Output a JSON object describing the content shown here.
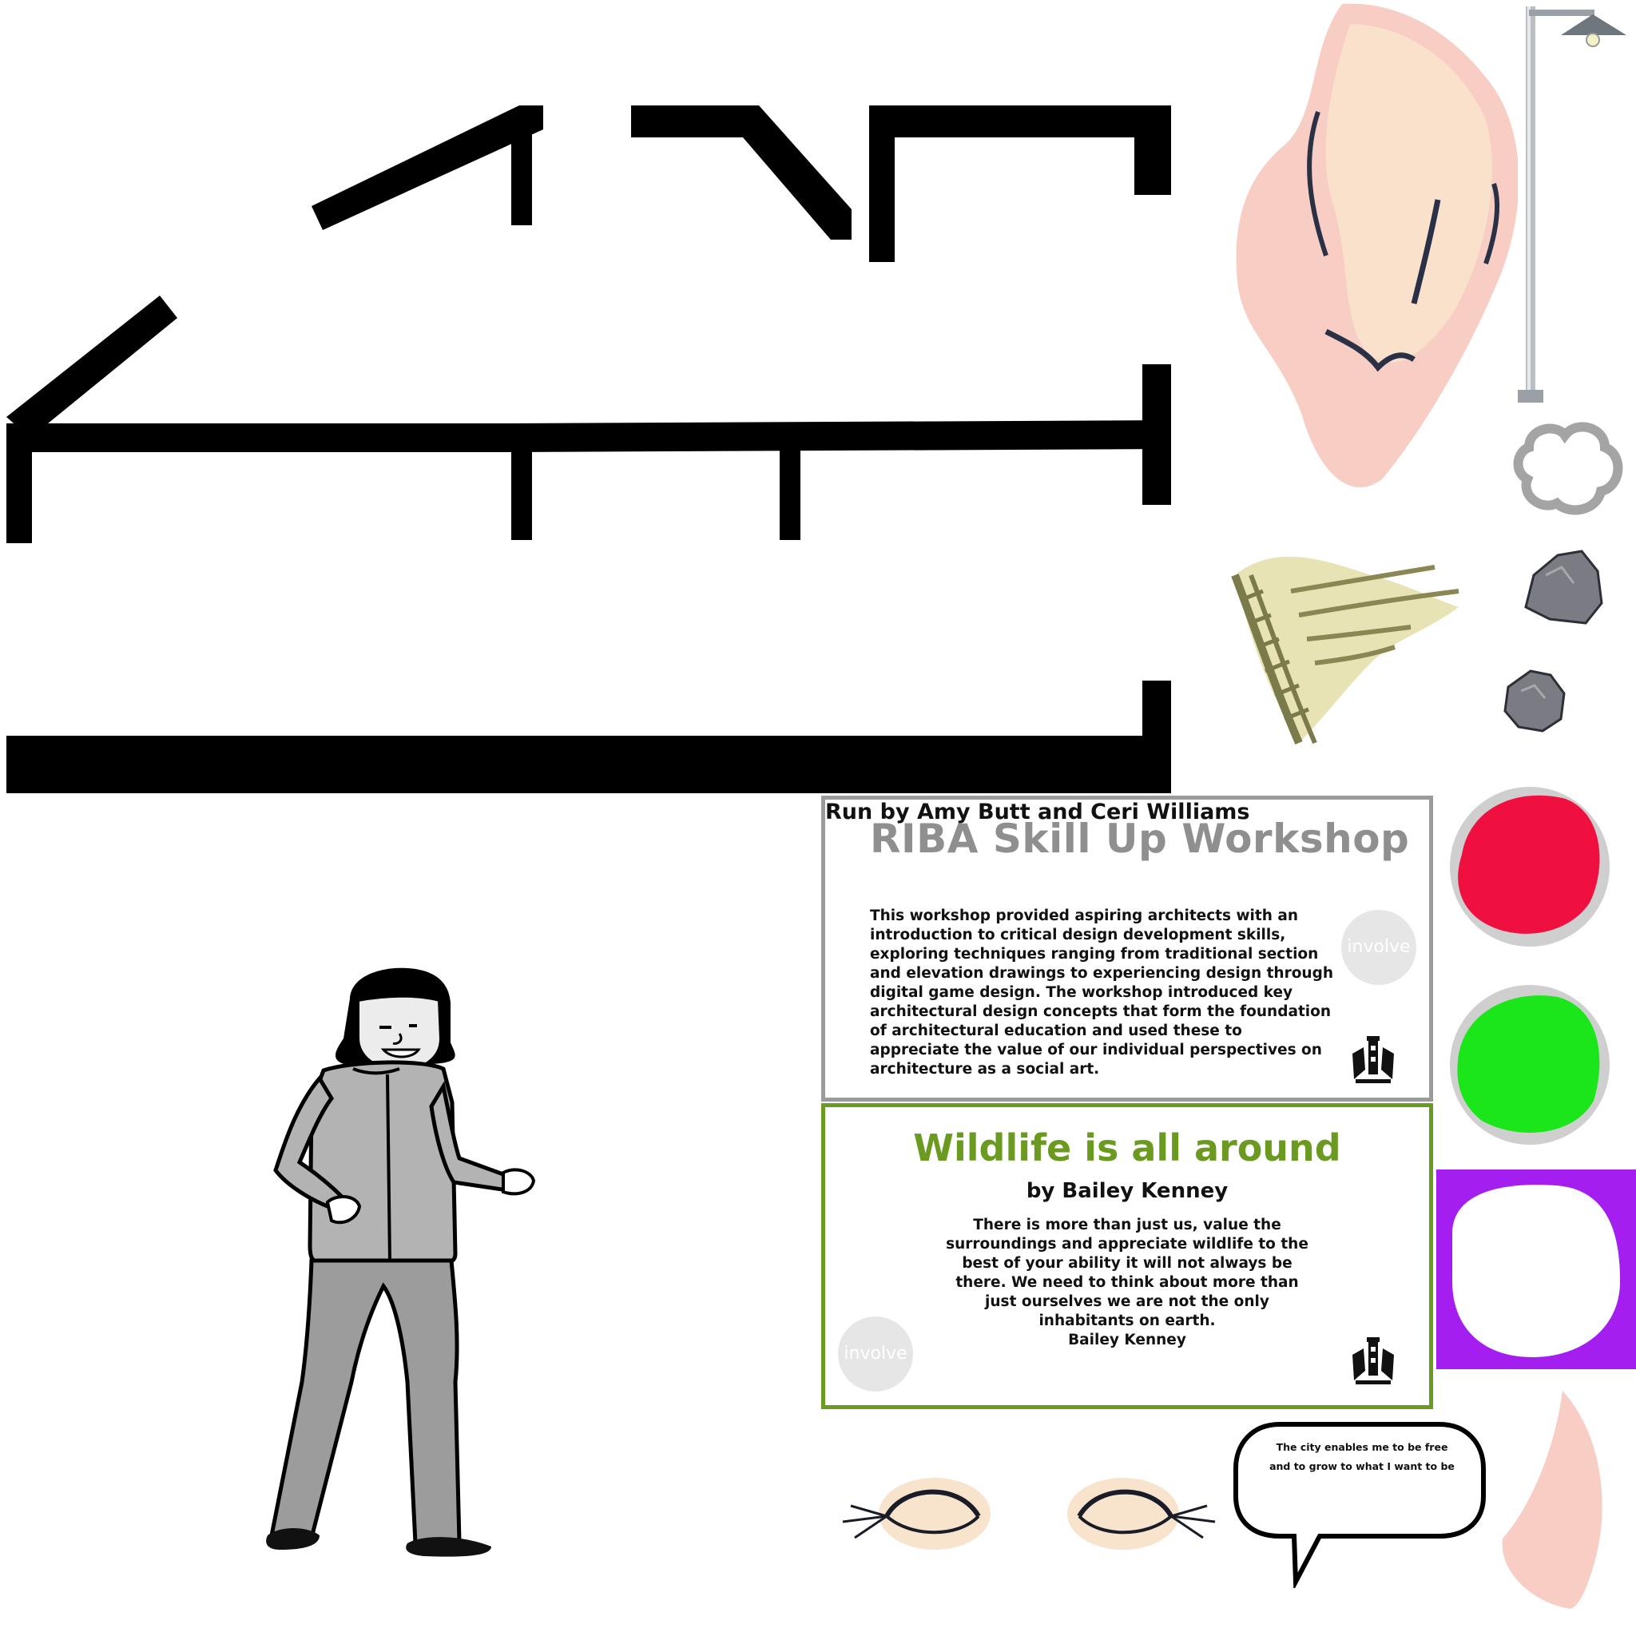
{
  "cards": {
    "riba": {
      "title": "RIBA Skill Up Workshop",
      "subtitle": "Run by Amy Butt and Ceri Williams",
      "body": "This workshop provided aspiring architects with an introduction to critical design development skills, exploring techniques ranging from traditional section and elevation drawings to experiencing design through digital game design. The workshop introduced key architectural design concepts that form the foundation of architectural education and used these to appreciate the value of our individual perspectives on architecture as a social art.",
      "logo_text": "involve",
      "border_color": "#9b9b9b"
    },
    "wildlife": {
      "title": "Wildlife is all around",
      "subtitle": "by Bailey Kenney",
      "body": "There is more than just us, value the surroundings and appreciate wildlife to the best of your ability it will not always be there. We need to think about more than just ourselves we are not the only inhabitants on earth.",
      "author": "Bailey Kenney",
      "logo_text": "involve",
      "border_color": "#6a9a1f"
    }
  },
  "speech_bubble": {
    "line1": "The city enables me to be free",
    "line2": "and to grow to what I want to be"
  },
  "colors": {
    "red_blob": "#f0103f",
    "green_blob": "#1ae61a",
    "purple_tile": "#a51ef0",
    "skin": "#f7cdc4",
    "cream": "#f8e3cc",
    "straw": "#e8e3b4",
    "rock": "#7b7c83"
  },
  "icons": [
    "crest-icon",
    "street-lamp-icon",
    "rock-icon",
    "cloud-outline-icon",
    "eye-closed-icon"
  ]
}
